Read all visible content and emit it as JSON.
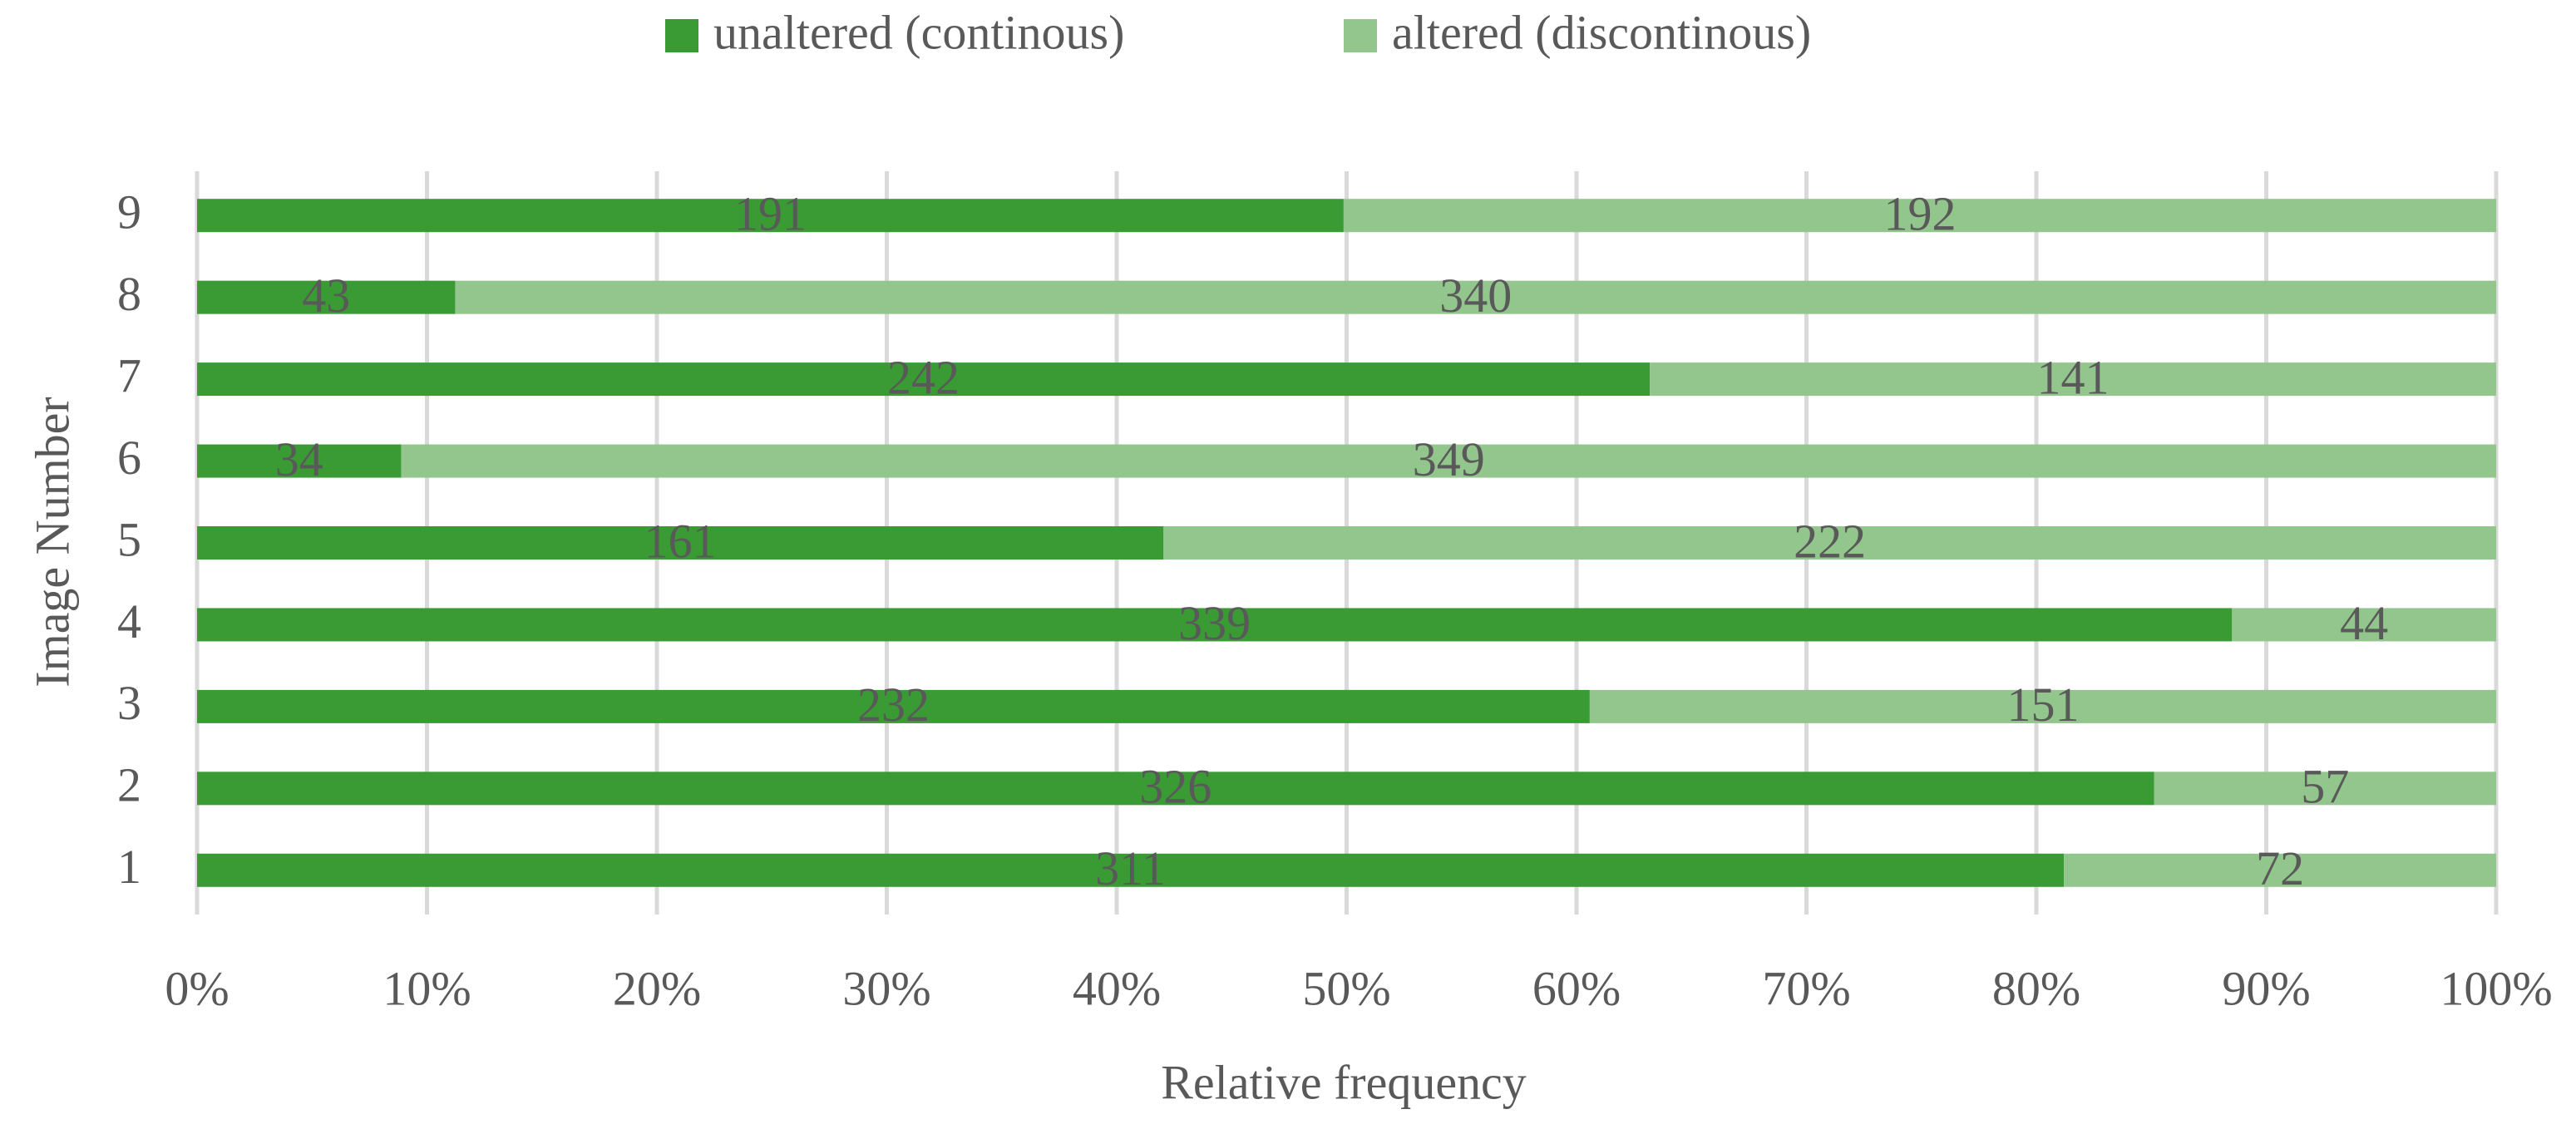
{
  "chart_data": {
    "type": "bar",
    "orientation": "horizontal",
    "stacking": "percent",
    "x_label": "Relative frequency",
    "y_label": "Image Number",
    "categories": [
      "1",
      "2",
      "3",
      "4",
      "5",
      "6",
      "7",
      "8",
      "9"
    ],
    "series": [
      {
        "name": "unaltered (continous)",
        "color": "#3a9a34",
        "values": [
          311,
          326,
          232,
          339,
          161,
          34,
          242,
          43,
          191
        ]
      },
      {
        "name": "altered (discontinous)",
        "color": "#92c68c",
        "values": [
          72,
          57,
          151,
          44,
          222,
          349,
          141,
          340,
          192
        ]
      }
    ],
    "xlim": [
      0,
      100
    ],
    "xticks": [
      {
        "value": 0,
        "label": "0%"
      },
      {
        "value": 10,
        "label": "10%"
      },
      {
        "value": 20,
        "label": "20%"
      },
      {
        "value": 30,
        "label": "30%"
      },
      {
        "value": 40,
        "label": "40%"
      },
      {
        "value": 50,
        "label": "50%"
      },
      {
        "value": 60,
        "label": "60%"
      },
      {
        "value": 70,
        "label": "70%"
      },
      {
        "value": 80,
        "label": "80%"
      },
      {
        "value": 90,
        "label": "90%"
      },
      {
        "value": 100,
        "label": "100%"
      }
    ],
    "grid": true,
    "legend": "top"
  }
}
